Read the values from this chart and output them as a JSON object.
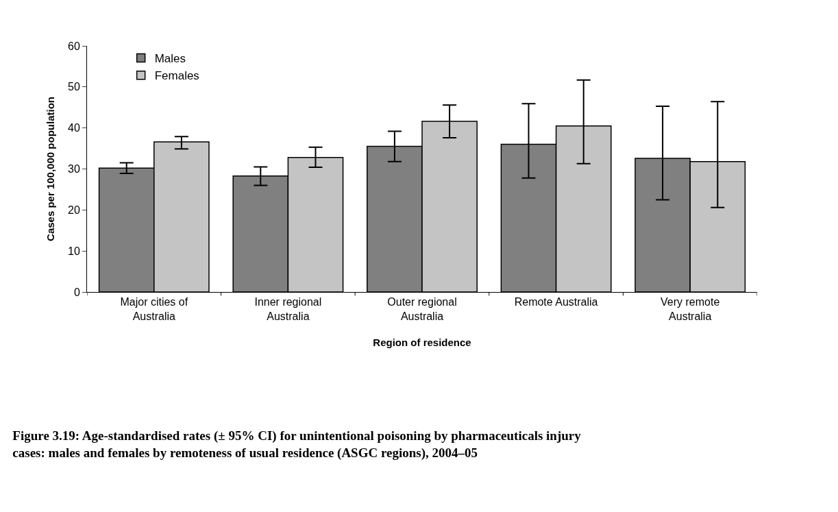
{
  "chart_data": {
    "type": "bar",
    "title": "Figure 3.19: Age-standardised rates (± 95% CI) for unintentional poisoning by pharmaceuticals injury cases: males and females by remoteness of usual residence (ASGC regions), 2004–05",
    "xlabel": "Region of residence",
    "ylabel": "Cases per 100,000 population",
    "categories": [
      "Major cities of Australia",
      "Inner regional Australia",
      "Outer regional Australia",
      "Remote Australia",
      "Very remote Australia"
    ],
    "series": [
      {
        "name": "Males",
        "color": "#808080",
        "values": [
          30.2,
          28.3,
          35.5,
          36.0,
          32.6
        ],
        "errors": [
          [
            28.9,
            31.5
          ],
          [
            26.0,
            30.5
          ],
          [
            31.8,
            39.2
          ],
          [
            27.8,
            45.9
          ],
          [
            22.5,
            45.3
          ]
        ]
      },
      {
        "name": "Females",
        "color": "#c4c4c4",
        "values": [
          36.6,
          32.8,
          41.6,
          40.5,
          31.8
        ],
        "errors": [
          [
            34.9,
            37.9
          ],
          [
            30.4,
            35.3
          ],
          [
            37.6,
            45.6
          ],
          [
            31.3,
            51.7
          ],
          [
            20.6,
            46.4
          ]
        ]
      }
    ],
    "ylim": [
      0,
      60
    ],
    "yticks": [
      0,
      10,
      20,
      30,
      40,
      50,
      60
    ],
    "legend": "top left"
  }
}
